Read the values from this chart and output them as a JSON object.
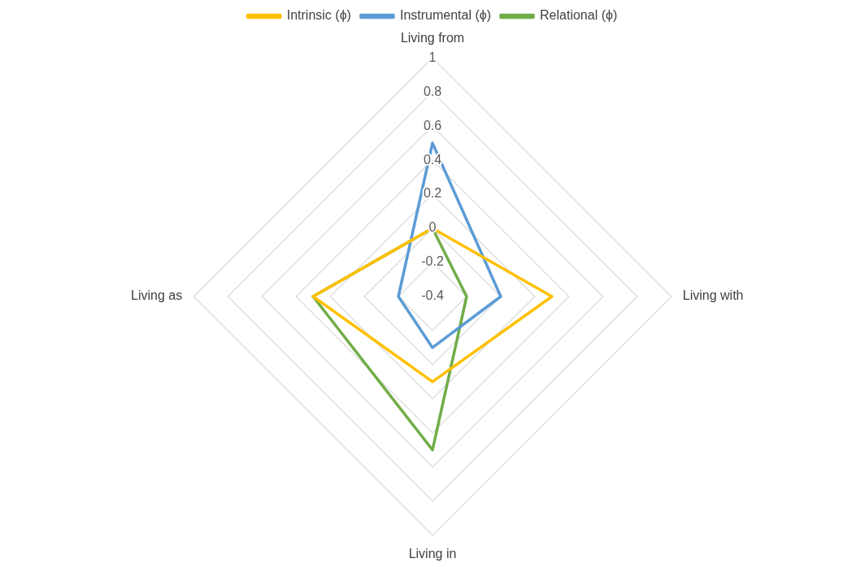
{
  "chart_data": {
    "type": "radar",
    "categories": [
      "Living from",
      "Living with",
      "Living in",
      "Living as"
    ],
    "series": [
      {
        "name": "Intrinsic (ϕ)",
        "color": "#ffc000",
        "values": [
          0,
          0.3,
          0.1,
          0.3
        ]
      },
      {
        "name": "Instrumental (ϕ)",
        "color": "#5b9bd5",
        "values": [
          0.5,
          0,
          -0.1,
          -0.2
        ]
      },
      {
        "name": "Relational (ϕ)",
        "color": "#70ad47",
        "values": [
          0,
          -0.2,
          0.5,
          0.3
        ]
      }
    ],
    "ylim": [
      -0.4,
      1
    ],
    "yticks": [
      -0.4,
      -0.2,
      0,
      0.2,
      0.4,
      0.6,
      0.8,
      1
    ],
    "grid": true,
    "legend": "top",
    "marker": "none"
  }
}
